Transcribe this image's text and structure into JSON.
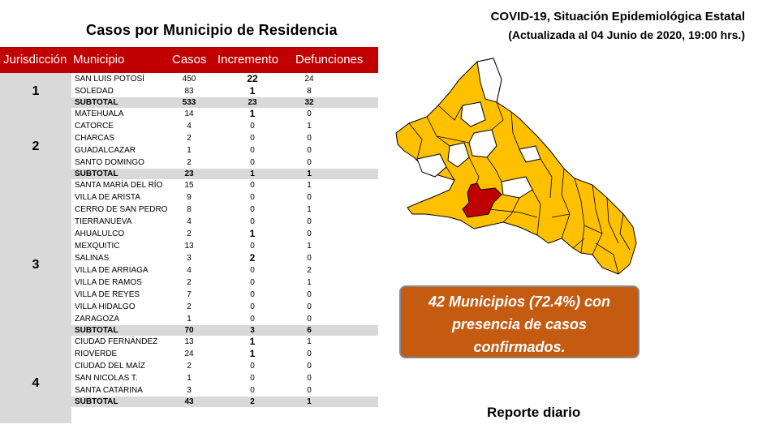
{
  "left_title": "Casos por Municipio  de Residencia",
  "header": {
    "jurisdiccion": "Jurisdicción",
    "municipio": "Municipio",
    "casos": "Casos",
    "incremento": "Incremento",
    "defunciones": "Defunciones"
  },
  "jurisdicciones": [
    "1",
    "2",
    "3",
    "4"
  ],
  "rows": [
    {
      "municipio": "SAN LUIS POTOSÍ",
      "casos": "450",
      "incremento": "22",
      "defunciones": "24"
    },
    {
      "municipio": "SOLEDAD",
      "casos": "83",
      "incremento": "1",
      "defunciones": "8"
    },
    {
      "municipio": "SUBTOTAL",
      "casos": "533",
      "incremento": "23",
      "defunciones": "32",
      "subtotal": true
    },
    {
      "municipio": "MATEHUALA",
      "casos": "14",
      "incremento": "1",
      "defunciones": "0"
    },
    {
      "municipio": "CATORCE",
      "casos": "4",
      "incremento": "0",
      "defunciones": "1"
    },
    {
      "municipio": "CHARCAS",
      "casos": "2",
      "incremento": "0",
      "defunciones": "0"
    },
    {
      "municipio": "GUADALCAZAR",
      "casos": "1",
      "incremento": "0",
      "defunciones": "0"
    },
    {
      "municipio": "SANTO DOMINGO",
      "casos": "2",
      "incremento": "0",
      "defunciones": "0"
    },
    {
      "municipio": "SUBTOTAL",
      "casos": "23",
      "incremento": "1",
      "defunciones": "1",
      "subtotal": true
    },
    {
      "municipio": "SANTA MARÍA DEL RÍO",
      "casos": "15",
      "incremento": "0",
      "defunciones": "1"
    },
    {
      "municipio": "VILLA DE ARISTA",
      "casos": "9",
      "incremento": "0",
      "defunciones": "0"
    },
    {
      "municipio": "CERRO DE SAN PEDRO",
      "casos": "8",
      "incremento": "0",
      "defunciones": "1"
    },
    {
      "municipio": "TIERRANUEVA",
      "casos": "4",
      "incremento": "0",
      "defunciones": "0"
    },
    {
      "municipio": "AHUALULCO",
      "casos": "2",
      "incremento": "1",
      "defunciones": "0"
    },
    {
      "municipio": "MEXQUITIC",
      "casos": "13",
      "incremento": "0",
      "defunciones": "1"
    },
    {
      "municipio": "SALINAS",
      "casos": "3",
      "incremento": "2",
      "defunciones": "0"
    },
    {
      "municipio": "VILLA DE ARRIAGA",
      "casos": "4",
      "incremento": "0",
      "defunciones": "2"
    },
    {
      "municipio": "VILLA DE RAMOS",
      "casos": "2",
      "incremento": "0",
      "defunciones": "1"
    },
    {
      "municipio": "VILLA DE REYES",
      "casos": "7",
      "incremento": "0",
      "defunciones": "0"
    },
    {
      "municipio": "VILLA HIDALGO",
      "casos": "2",
      "incremento": "0",
      "defunciones": "0"
    },
    {
      "municipio": "ZARAGOZA",
      "casos": "1",
      "incremento": "0",
      "defunciones": "0"
    },
    {
      "municipio": "SUBTOTAL",
      "casos": "70",
      "incremento": "3",
      "defunciones": "6",
      "subtotal": true
    },
    {
      "municipio": "CIUDAD FERNÁNDEZ",
      "casos": "13",
      "incremento": "1",
      "defunciones": "1"
    },
    {
      "municipio": "RIOVERDE",
      "casos": "24",
      "incremento": "1",
      "defunciones": "0"
    },
    {
      "municipio": "CIUDAD DEL MAÍZ",
      "casos": "2",
      "incremento": "0",
      "defunciones": "0"
    },
    {
      "municipio": "SAN NICOLAS T.",
      "casos": "1",
      "incremento": "0",
      "defunciones": "0"
    },
    {
      "municipio": "SANTA CATARINA",
      "casos": "3",
      "incremento": "0",
      "defunciones": "0"
    },
    {
      "municipio": "SUBTOTAL",
      "casos": "43",
      "incremento": "2",
      "defunciones": "1",
      "subtotal": true
    }
  ],
  "title_line1": "COVID-19, Situación Epidemiológica Estatal",
  "title_line2": "(Actualizada al 04 Junio de 2020, 19:00 hrs.)",
  "callout": {
    "line1": "42 Municipios (72.4%) con",
    "line2": "presencia de casos",
    "line3": "confirmados."
  },
  "daily_report": "Reporte diario",
  "colors": {
    "header_red": "#c00000",
    "map_cases": "#ffc000",
    "map_capital": "#c00000",
    "map_none": "#ffffff",
    "callout": "#c55a11",
    "subtotal_gray": "#d9d9d9"
  }
}
